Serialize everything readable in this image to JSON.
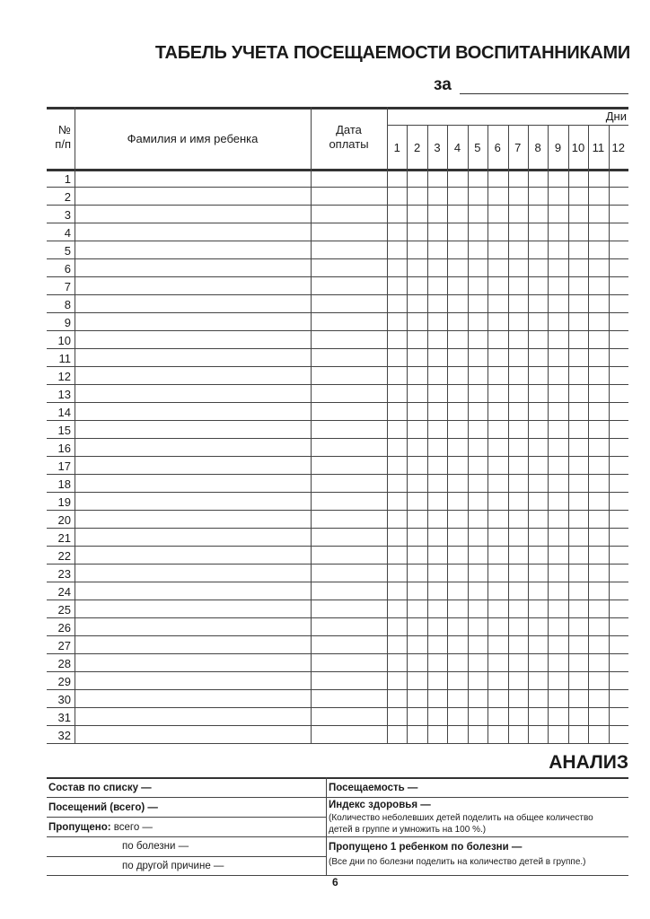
{
  "title": "ТАБЕЛЬ УЧЕТА ПОСЕЩАЕМОСТИ ВОСПИТАННИКАМИ",
  "period_label": "за",
  "table": {
    "col_number": [
      "№",
      "п/п"
    ],
    "col_name": "Фамилия и имя ребенка",
    "col_payment": [
      "Дата",
      "оплаты"
    ],
    "days_label": "Дни",
    "days": [
      "1",
      "2",
      "3",
      "4",
      "5",
      "6",
      "7",
      "8",
      "9",
      "10",
      "11",
      "12"
    ],
    "rows": [
      "1",
      "2",
      "3",
      "4",
      "5",
      "6",
      "7",
      "8",
      "9",
      "10",
      "11",
      "12",
      "13",
      "14",
      "15",
      "16",
      "17",
      "18",
      "19",
      "20",
      "21",
      "22",
      "23",
      "24",
      "25",
      "26",
      "27",
      "28",
      "29",
      "30",
      "31",
      "32"
    ]
  },
  "analysis": {
    "title": "АНАЛИЗ",
    "left": {
      "roster": "Состав по списку —",
      "visits": "Посещений (всего) —",
      "missed_bold": "Пропущено:",
      "missed_total": " всего —",
      "by_illness": "по болезни —",
      "other_reason": "по другой причине —"
    },
    "right": {
      "attendance": "Посещаемость —",
      "health_index": "Индекс здоровья —",
      "health_note_1": "(Количество неболевших детей поделить на общее количество",
      "health_note_2": "детей в группе и умножить на 100 %.)",
      "missed_per_child": "Пропущено 1 ребенком по болезни —",
      "missed_note": "(Все дни по болезни поделить на количество детей в группе.)"
    }
  },
  "page_number": "6"
}
